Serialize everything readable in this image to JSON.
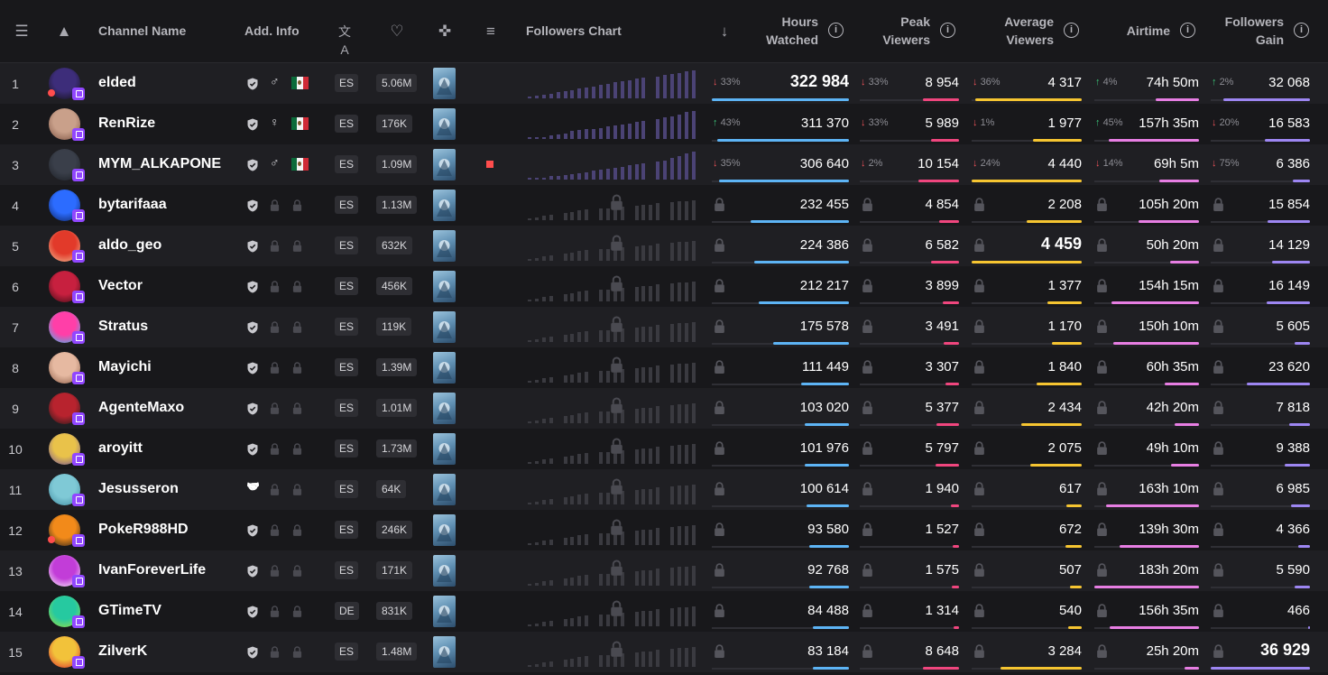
{
  "colors": {
    "hours": "#5db4f5",
    "peak": "#f0467e",
    "average": "#f6c531",
    "airtime": "#e77ee3",
    "gain": "#9d86f2",
    "chart_bar": "#4b4375",
    "chart_locked": "#3a3a40",
    "twitch": "#9147ff"
  },
  "header": {
    "columns": [
      {
        "id": "list",
        "icon": "list-icon",
        "glyph": "☰"
      },
      {
        "id": "logo",
        "icon": "mountain-logo-icon",
        "glyph": "▲"
      },
      {
        "id": "channel",
        "label": "Channel Name"
      },
      {
        "id": "addinfo",
        "label": "Add. Info"
      },
      {
        "id": "lang",
        "icon": "translate-icon",
        "glyph": "文A"
      },
      {
        "id": "fav",
        "icon": "heart-icon",
        "glyph": "♡"
      },
      {
        "id": "game",
        "icon": "gamepad-icon",
        "glyph": "✜"
      },
      {
        "id": "sort",
        "icon": "sort-lines-icon",
        "glyph": "≡"
      },
      {
        "id": "chart",
        "label": "Followers Chart"
      },
      {
        "id": "dir",
        "icon": "sort-down-arrow-icon",
        "glyph": "↓"
      },
      {
        "id": "hours",
        "label1": "Hours",
        "label2": "Watched"
      },
      {
        "id": "peak",
        "label1": "Peak",
        "label2": "Viewers"
      },
      {
        "id": "avg",
        "label1": "Average",
        "label2": "Viewers"
      },
      {
        "id": "air",
        "label1": "Airtime"
      },
      {
        "id": "gain",
        "label1": "Followers",
        "label2": "Gain"
      }
    ],
    "info_glyph": "i"
  },
  "rows": [
    {
      "rank": "1",
      "name": "elded",
      "avatar": [
        "#3d2d7a",
        "#111"
      ],
      "live": true,
      "info": [
        "shield",
        "♂",
        "mx"
      ],
      "lang": "ES",
      "followers": "5.06M",
      "marker": false,
      "locked": false,
      "chart": [
        1,
        2,
        3,
        4,
        5,
        6,
        7,
        8,
        9,
        10,
        11,
        12,
        13,
        14,
        15,
        16,
        17,
        0,
        18,
        19,
        20,
        21,
        22,
        23
      ],
      "hours": {
        "d": "33%",
        "dir": "down",
        "v": "322 984",
        "big": true,
        "f": 1.0
      },
      "peak": {
        "d": "33%",
        "dir": "down",
        "v": "8 954",
        "f": 0.36
      },
      "avg": {
        "d": "36%",
        "dir": "down",
        "v": "4 317",
        "f": 0.97
      },
      "air": {
        "d": "4%",
        "dir": "up",
        "v": "74h 50m",
        "f": 0.41
      },
      "gain": {
        "d": "2%",
        "dir": "up",
        "v": "32 068",
        "f": 0.87
      }
    },
    {
      "rank": "2",
      "name": "RenRize",
      "avatar": [
        "#c9a08a",
        "#7a5040"
      ],
      "live": false,
      "info": [
        "shield",
        "♀",
        "mx"
      ],
      "lang": "ES",
      "followers": "176K",
      "marker": false,
      "locked": false,
      "chart": [
        1,
        1,
        2,
        3,
        4,
        5,
        7,
        8,
        9,
        9,
        10,
        11,
        12,
        13,
        14,
        15,
        16,
        0,
        18,
        19,
        20,
        22,
        24,
        25
      ],
      "hours": {
        "d": "43%",
        "dir": "up",
        "v": "311 370",
        "f": 0.96
      },
      "peak": {
        "d": "33%",
        "dir": "down",
        "v": "5 989",
        "f": 0.28
      },
      "avg": {
        "d": "1%",
        "dir": "down",
        "v": "1 977",
        "f": 0.44
      },
      "air": {
        "d": "45%",
        "dir": "up",
        "v": "157h 35m",
        "f": 0.86
      },
      "gain": {
        "d": "20%",
        "dir": "down",
        "v": "16 583",
        "f": 0.45
      }
    },
    {
      "rank": "3",
      "name": "MYM_ALKAPONE",
      "avatar": [
        "#3a3f4a",
        "#1b1e24"
      ],
      "live": false,
      "info": [
        "shield",
        "♂",
        "mx"
      ],
      "lang": "ES",
      "followers": "1.09M",
      "marker": true,
      "locked": false,
      "chart": [
        1,
        1,
        2,
        3,
        3,
        4,
        5,
        6,
        7,
        8,
        9,
        10,
        11,
        12,
        13,
        14,
        15,
        0,
        17,
        18,
        20,
        22,
        24,
        26
      ],
      "hours": {
        "d": "35%",
        "dir": "down",
        "v": "306 640",
        "f": 0.95
      },
      "peak": {
        "d": "2%",
        "dir": "down",
        "v": "10 154",
        "f": 0.41
      },
      "avg": {
        "d": "24%",
        "dir": "down",
        "v": "4 440",
        "f": 1.0
      },
      "air": {
        "d": "14%",
        "dir": "down",
        "v": "69h 5m",
        "f": 0.38
      },
      "gain": {
        "d": "75%",
        "dir": "down",
        "v": "6 386",
        "f": 0.17
      }
    },
    {
      "rank": "4",
      "name": "bytarifaaa",
      "avatar": [
        "#2c6cff",
        "#0a1f5a"
      ],
      "live": false,
      "info": [
        "shield",
        "lock",
        "lock"
      ],
      "lang": "ES",
      "followers": "1.13M",
      "marker": false,
      "locked": true,
      "hours": {
        "v": "232 455",
        "f": 0.72
      },
      "peak": {
        "v": "4 854",
        "f": 0.2
      },
      "avg": {
        "v": "2 208",
        "f": 0.5
      },
      "air": {
        "v": "105h 20m",
        "f": 0.58
      },
      "gain": {
        "v": "15 854",
        "f": 0.43
      }
    },
    {
      "rank": "5",
      "name": "aldo_geo",
      "avatar": [
        "#e23a2a",
        "#f3c59a"
      ],
      "live": false,
      "info": [
        "shield",
        "lock",
        "lock"
      ],
      "lang": "ES",
      "followers": "632K",
      "marker": false,
      "locked": true,
      "hours": {
        "v": "224 386",
        "f": 0.69
      },
      "peak": {
        "v": "6 582",
        "f": 0.28
      },
      "avg": {
        "v": "4 459",
        "big": true,
        "f": 1.0
      },
      "air": {
        "v": "50h 20m",
        "f": 0.28
      },
      "gain": {
        "v": "14 129",
        "f": 0.38
      }
    },
    {
      "rank": "6",
      "name": "Vector",
      "avatar": [
        "#c7203f",
        "#3a0c14"
      ],
      "live": false,
      "info": [
        "shield",
        "lock",
        "lock"
      ],
      "lang": "ES",
      "followers": "456K",
      "marker": false,
      "locked": true,
      "hours": {
        "v": "212 217",
        "f": 0.66
      },
      "peak": {
        "v": "3 899",
        "f": 0.16
      },
      "avg": {
        "v": "1 377",
        "f": 0.31
      },
      "air": {
        "v": "154h 15m",
        "f": 0.84
      },
      "gain": {
        "v": "16 149",
        "f": 0.44
      }
    },
    {
      "rank": "7",
      "name": "Stratus",
      "avatar": [
        "#ff3fa8",
        "#29c3f2"
      ],
      "live": false,
      "info": [
        "shield",
        "lock",
        "lock"
      ],
      "lang": "ES",
      "followers": "119K",
      "marker": false,
      "locked": true,
      "hours": {
        "v": "175 578",
        "f": 0.55
      },
      "peak": {
        "v": "3 491",
        "f": 0.15
      },
      "avg": {
        "v": "1 170",
        "f": 0.27
      },
      "air": {
        "v": "150h 10m",
        "f": 0.82
      },
      "gain": {
        "v": "5 605",
        "f": 0.15
      }
    },
    {
      "rank": "8",
      "name": "Mayichi",
      "avatar": [
        "#e6b9a1",
        "#8a5a44"
      ],
      "live": false,
      "info": [
        "shield",
        "lock",
        "lock"
      ],
      "lang": "ES",
      "followers": "1.39M",
      "marker": false,
      "locked": true,
      "hours": {
        "v": "111 449",
        "f": 0.35
      },
      "peak": {
        "v": "3 307",
        "f": 0.14
      },
      "avg": {
        "v": "1 840",
        "f": 0.41
      },
      "air": {
        "v": "60h 35m",
        "f": 0.33
      },
      "gain": {
        "v": "23 620",
        "f": 0.64
      }
    },
    {
      "rank": "9",
      "name": "AgenteMaxo",
      "avatar": [
        "#b8232e",
        "#1a1a1a"
      ],
      "live": false,
      "info": [
        "shield",
        "lock",
        "lock"
      ],
      "lang": "ES",
      "followers": "1.01M",
      "marker": false,
      "locked": true,
      "hours": {
        "v": "103 020",
        "f": 0.32
      },
      "peak": {
        "v": "5 377",
        "f": 0.23
      },
      "avg": {
        "v": "2 434",
        "f": 0.55
      },
      "air": {
        "v": "42h 20m",
        "f": 0.23
      },
      "gain": {
        "v": "7 818",
        "f": 0.21
      }
    },
    {
      "rank": "10",
      "name": "aroyitt",
      "avatar": [
        "#e9c24a",
        "#6b4b9a"
      ],
      "live": false,
      "info": [
        "shield",
        "lock",
        "lock"
      ],
      "lang": "ES",
      "followers": "1.73M",
      "marker": false,
      "locked": true,
      "hours": {
        "v": "101 976",
        "f": 0.32
      },
      "peak": {
        "v": "5 797",
        "f": 0.24
      },
      "avg": {
        "v": "2 075",
        "f": 0.47
      },
      "air": {
        "v": "49h 10m",
        "f": 0.27
      },
      "gain": {
        "v": "9 388",
        "f": 0.25
      }
    },
    {
      "rank": "11",
      "name": "Jesusseron",
      "avatar": [
        "#7fc9d6",
        "#3e8aa0"
      ],
      "live": false,
      "info": [
        "handshake",
        "lock",
        "lock"
      ],
      "lang": "ES",
      "followers": "64K",
      "marker": false,
      "locked": true,
      "hours": {
        "v": "100 614",
        "f": 0.31
      },
      "peak": {
        "v": "1 940",
        "f": 0.08
      },
      "avg": {
        "v": "617",
        "f": 0.14
      },
      "air": {
        "v": "163h 10m",
        "f": 0.89
      },
      "gain": {
        "v": "6 985",
        "f": 0.19
      }
    },
    {
      "rank": "12",
      "name": "PokeR988HD",
      "avatar": [
        "#f28a1a",
        "#1a1a1a"
      ],
      "live": true,
      "info": [
        "shield",
        "lock",
        "lock"
      ],
      "lang": "ES",
      "followers": "246K",
      "marker": false,
      "locked": true,
      "hours": {
        "v": "93 580",
        "f": 0.29
      },
      "peak": {
        "v": "1 527",
        "f": 0.06
      },
      "avg": {
        "v": "672",
        "f": 0.15
      },
      "air": {
        "v": "139h 30m",
        "f": 0.76
      },
      "gain": {
        "v": "4 366",
        "f": 0.12
      }
    },
    {
      "rank": "13",
      "name": "IvanForeverLife",
      "avatar": [
        "#c23dd8",
        "#ffffff"
      ],
      "live": false,
      "info": [
        "shield",
        "lock",
        "lock"
      ],
      "lang": "ES",
      "followers": "171K",
      "marker": false,
      "locked": true,
      "hours": {
        "v": "92 768",
        "f": 0.29
      },
      "peak": {
        "v": "1 575",
        "f": 0.07
      },
      "avg": {
        "v": "507",
        "f": 0.11
      },
      "air": {
        "v": "183h 20m",
        "f": 1.0
      },
      "gain": {
        "v": "5 590",
        "f": 0.15
      }
    },
    {
      "rank": "14",
      "name": "GTimeTV",
      "avatar": [
        "#26c9a0",
        "#a6e23a"
      ],
      "live": false,
      "info": [
        "shield",
        "lock",
        "lock"
      ],
      "lang": "DE",
      "followers": "831K",
      "marker": false,
      "locked": true,
      "hours": {
        "v": "84 488",
        "f": 0.26
      },
      "peak": {
        "v": "1 314",
        "f": 0.05
      },
      "avg": {
        "v": "540",
        "f": 0.12
      },
      "air": {
        "v": "156h 35m",
        "f": 0.85
      },
      "gain": {
        "v": "466",
        "f": 0.02
      }
    },
    {
      "rank": "15",
      "name": "ZilverK",
      "avatar": [
        "#f2c23a",
        "#d9232e"
      ],
      "live": false,
      "info": [
        "shield",
        "lock",
        "lock"
      ],
      "lang": "ES",
      "followers": "1.48M",
      "marker": false,
      "locked": true,
      "hours": {
        "v": "83 184",
        "f": 0.26
      },
      "peak": {
        "v": "8 648",
        "f": 0.36
      },
      "avg": {
        "v": "3 284",
        "f": 0.74
      },
      "air": {
        "v": "25h 20m",
        "f": 0.14
      },
      "gain": {
        "v": "36 929",
        "big": true,
        "f": 1.0
      }
    }
  ]
}
